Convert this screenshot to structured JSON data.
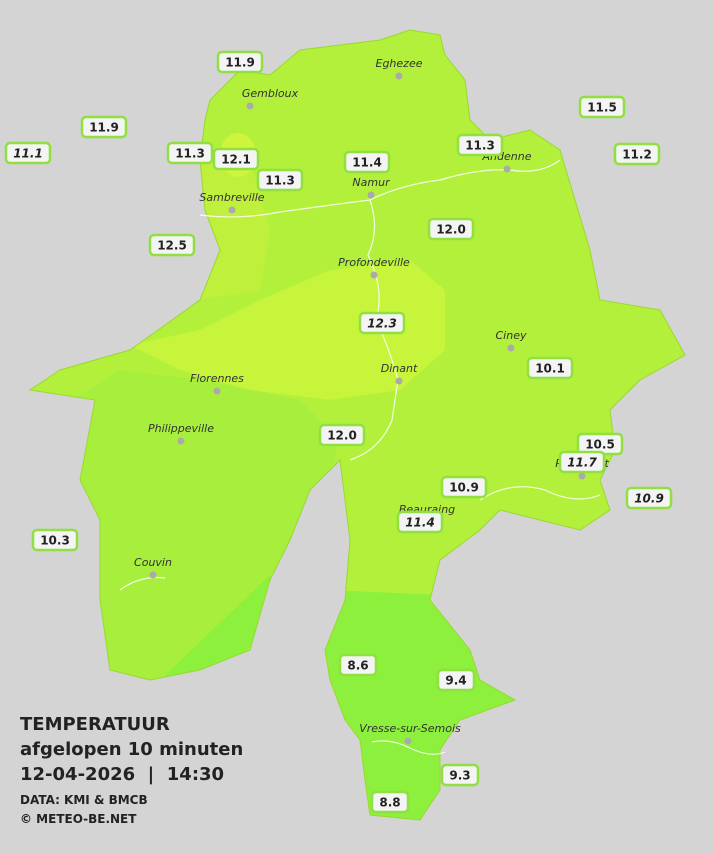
{
  "header": {
    "title": "TEMPERATUUR",
    "subtitle": "afgelopen 10 minuten",
    "datetime": "12-04-2026  |  14:30",
    "source": "DATA: KMI & BMCB",
    "copyright": "© METEO-BE.NET"
  },
  "cities": [
    "Eghezee",
    "Gembloux",
    "Andenne",
    "Namur",
    "Sambreville",
    "Profondeville",
    "Ciney",
    "Dinant",
    "Florennes",
    "Philippeville",
    "Rochefort",
    "Beauraing",
    "Couvin",
    "Vresse-sur-Semois"
  ],
  "stations": [
    {
      "label": "11.9",
      "italic": false
    },
    {
      "label": "11.9",
      "italic": false
    },
    {
      "label": "11.1",
      "italic": true
    },
    {
      "label": "11.3",
      "italic": false
    },
    {
      "label": "12.1",
      "italic": false
    },
    {
      "label": "11.3",
      "italic": false
    },
    {
      "label": "11.4",
      "italic": false
    },
    {
      "label": "11.3",
      "italic": false
    },
    {
      "label": "11.5",
      "italic": false
    },
    {
      "label": "11.2",
      "italic": false
    },
    {
      "label": "12.5",
      "italic": false
    },
    {
      "label": "12.0",
      "italic": false
    },
    {
      "label": "12.3",
      "italic": true
    },
    {
      "label": "10.1",
      "italic": false
    },
    {
      "label": "12.0",
      "italic": false
    },
    {
      "label": "10.5",
      "italic": false
    },
    {
      "label": "11.7",
      "italic": true
    },
    {
      "label": "10.9",
      "italic": false
    },
    {
      "label": "10.9",
      "italic": true
    },
    {
      "label": "11.4",
      "italic": true
    },
    {
      "label": "10.3",
      "italic": false
    },
    {
      "label": "8.6",
      "italic": false
    },
    {
      "label": "9.4",
      "italic": false
    },
    {
      "label": "9.3",
      "italic": false
    },
    {
      "label": "8.8",
      "italic": false
    }
  ]
}
